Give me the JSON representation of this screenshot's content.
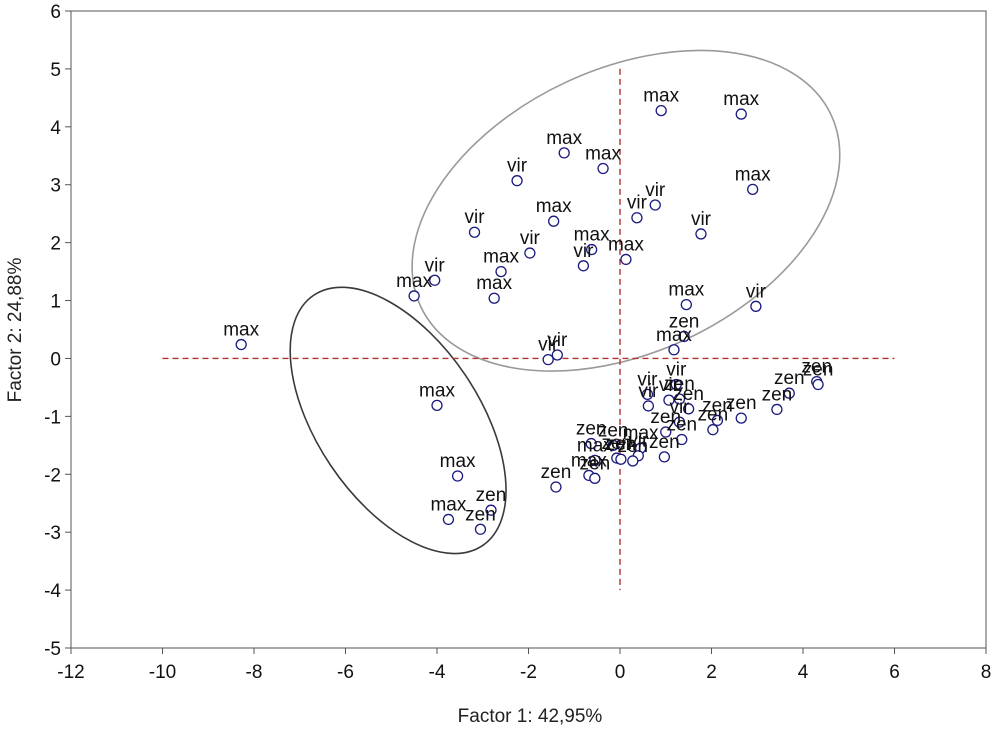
{
  "chart_data": {
    "type": "scatter",
    "xlabel": "Factor 1: 42,95%",
    "ylabel": "Factor 2: 24,88%",
    "xlim": [
      -12,
      8
    ],
    "ylim": [
      -5,
      6
    ],
    "xticks": [
      "-12",
      "-10",
      "-8",
      "-6",
      "-4",
      "-2",
      "0",
      "2",
      "4",
      "6",
      "8"
    ],
    "yticks": [
      "6",
      "5",
      "4",
      "3",
      "2",
      "1",
      "0",
      "-1",
      "-2",
      "-3",
      "-4",
      "-5"
    ],
    "grid": false,
    "reference_lines": {
      "x": 0,
      "y": 0,
      "color": "#b03030",
      "style": "dashed"
    },
    "marker_color": "#1a1a80",
    "points": [
      {
        "x": 0.9,
        "y": 4.28,
        "label": "max"
      },
      {
        "x": 2.65,
        "y": 4.22,
        "label": "max"
      },
      {
        "x": -1.22,
        "y": 3.55,
        "label": "max"
      },
      {
        "x": -0.37,
        "y": 3.28,
        "label": "max"
      },
      {
        "x": -2.25,
        "y": 3.07,
        "label": "vir"
      },
      {
        "x": 2.9,
        "y": 2.92,
        "label": "max"
      },
      {
        "x": 0.77,
        "y": 2.65,
        "label": "vir"
      },
      {
        "x": -1.45,
        "y": 2.37,
        "label": "max"
      },
      {
        "x": 0.37,
        "y": 2.43,
        "label": "vir"
      },
      {
        "x": -3.18,
        "y": 2.18,
        "label": "vir"
      },
      {
        "x": 1.77,
        "y": 2.15,
        "label": "vir"
      },
      {
        "x": -0.62,
        "y": 1.88,
        "label": "max"
      },
      {
        "x": -1.97,
        "y": 1.82,
        "label": "vir"
      },
      {
        "x": 0.13,
        "y": 1.71,
        "label": "max"
      },
      {
        "x": -0.8,
        "y": 1.6,
        "label": "vir"
      },
      {
        "x": -2.6,
        "y": 1.5,
        "label": "max"
      },
      {
        "x": -4.05,
        "y": 1.35,
        "label": "vir"
      },
      {
        "x": -4.5,
        "y": 1.08,
        "label": "max"
      },
      {
        "x": -2.75,
        "y": 1.04,
        "label": "max"
      },
      {
        "x": 1.45,
        "y": 0.93,
        "label": "max"
      },
      {
        "x": 2.97,
        "y": 0.9,
        "label": "vir"
      },
      {
        "x": 1.4,
        "y": 0.38,
        "label": "zen"
      },
      {
        "x": -8.28,
        "y": 0.24,
        "label": "max"
      },
      {
        "x": 1.18,
        "y": 0.15,
        "label": "max"
      },
      {
        "x": -1.37,
        "y": 0.06,
        "label": "vir"
      },
      {
        "x": -1.57,
        "y": -0.02,
        "label": "vir"
      },
      {
        "x": 1.23,
        "y": -0.45,
        "label": "vir"
      },
      {
        "x": 4.3,
        "y": -0.4,
        "label": "zen"
      },
      {
        "x": 4.33,
        "y": -0.45,
        "label": "zen"
      },
      {
        "x": 3.7,
        "y": -0.6,
        "label": "zen"
      },
      {
        "x": 0.6,
        "y": -0.62,
        "label": "vir"
      },
      {
        "x": 1.07,
        "y": -0.72,
        "label": "vir"
      },
      {
        "x": 1.3,
        "y": -0.7,
        "label": "zen"
      },
      {
        "x": 0.62,
        "y": -0.82,
        "label": "vir"
      },
      {
        "x": -4.0,
        "y": -0.81,
        "label": "max"
      },
      {
        "x": 1.5,
        "y": -0.87,
        "label": "zen"
      },
      {
        "x": 3.43,
        "y": -0.88,
        "label": "zen"
      },
      {
        "x": 2.65,
        "y": -1.03,
        "label": "zen"
      },
      {
        "x": 2.13,
        "y": -1.07,
        "label": "zen"
      },
      {
        "x": 1.3,
        "y": -1.1,
        "label": "vir"
      },
      {
        "x": 2.03,
        "y": -1.23,
        "label": "zen"
      },
      {
        "x": 1.0,
        "y": -1.27,
        "label": "zen"
      },
      {
        "x": 1.35,
        "y": -1.4,
        "label": "zen"
      },
      {
        "x": -0.63,
        "y": -1.47,
        "label": "zen"
      },
      {
        "x": -0.15,
        "y": -1.5,
        "label": "zen"
      },
      {
        "x": 0.45,
        "y": -1.55,
        "label": "max"
      },
      {
        "x": 0.97,
        "y": -1.7,
        "label": "zen"
      },
      {
        "x": 0.4,
        "y": -1.68,
        "label": "vir"
      },
      {
        "x": -0.07,
        "y": -1.72,
        "label": "zen"
      },
      {
        "x": 0.02,
        "y": -1.74,
        "label": "zen"
      },
      {
        "x": 0.28,
        "y": -1.77,
        "label": "zen"
      },
      {
        "x": -0.55,
        "y": -1.76,
        "label": "max"
      },
      {
        "x": -0.68,
        "y": -2.02,
        "label": "max"
      },
      {
        "x": -0.55,
        "y": -2.07,
        "label": "zen"
      },
      {
        "x": -3.55,
        "y": -2.03,
        "label": "max"
      },
      {
        "x": -1.4,
        "y": -2.22,
        "label": "zen"
      },
      {
        "x": -2.82,
        "y": -2.62,
        "label": "zen"
      },
      {
        "x": -3.75,
        "y": -2.78,
        "label": "max"
      },
      {
        "x": -3.05,
        "y": -2.95,
        "label": "zen"
      }
    ],
    "ellipses": [
      {
        "cx": 0.13,
        "cy": 2.55,
        "rx": 4.95,
        "ry": 2.45,
        "rotation_deg": -25,
        "color": "#9a9a9a"
      },
      {
        "cx": -4.85,
        "cy": -1.07,
        "rx": 3.3,
        "ry": 1.4,
        "rotation_deg": 56,
        "color": "#3a3a3a"
      }
    ]
  }
}
